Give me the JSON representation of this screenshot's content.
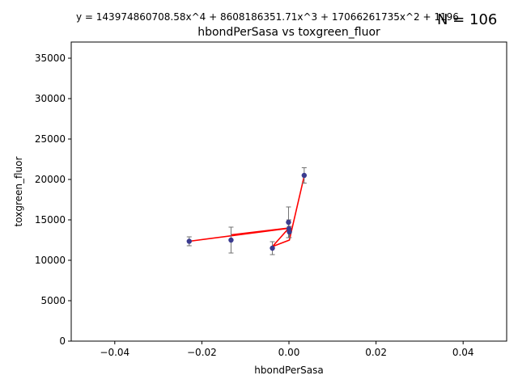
{
  "chart_data": {
    "type": "scatter",
    "title": "hbondPerSasa vs toxgreen_fluor",
    "equation": "y = 143974860708.58x^4 + 8608186351.71x^3 + 17066261735x^2 + 1196",
    "n_label": "N = 106",
    "xlabel": "hbondPerSasa",
    "ylabel": "toxgreen_fluor",
    "xlim": [
      -0.05,
      0.05
    ],
    "ylim": [
      0,
      37000
    ],
    "xticks": [
      -0.04,
      -0.02,
      0.0,
      0.02,
      0.04
    ],
    "xtick_labels": [
      "−0.04",
      "−0.02",
      "0.00",
      "0.02",
      "0.04"
    ],
    "yticks": [
      0,
      5000,
      10000,
      15000,
      20000,
      25000,
      30000,
      35000
    ],
    "ytick_labels": [
      "0",
      "5000",
      "10000",
      "15000",
      "20000",
      "25000",
      "30000",
      "35000"
    ],
    "grid": false,
    "points": [
      {
        "x": -0.0229,
        "y": 12350,
        "err": 550
      },
      {
        "x": -0.0133,
        "y": 12500,
        "err": 1600
      },
      {
        "x": -0.0038,
        "y": 11500,
        "err": 800
      },
      {
        "x": -0.0001,
        "y": 14700,
        "err": 1900
      },
      {
        "x": 0.0,
        "y": 13900,
        "err": 1100
      },
      {
        "x": 0.0001,
        "y": 13500,
        "err": 700
      },
      {
        "x": 0.0035,
        "y": 20500,
        "err": 950
      }
    ],
    "fit_line": {
      "color": "#ff0000",
      "x": [
        -0.0229,
        -0.0001,
        -0.0133,
        0.0,
        -0.0038,
        0.0001,
        0.0035
      ],
      "y": [
        12350,
        13950,
        13150,
        14000,
        11700,
        12500,
        20400
      ]
    },
    "point_color": "#3b3b8f",
    "errorbar_color": "#707070"
  }
}
